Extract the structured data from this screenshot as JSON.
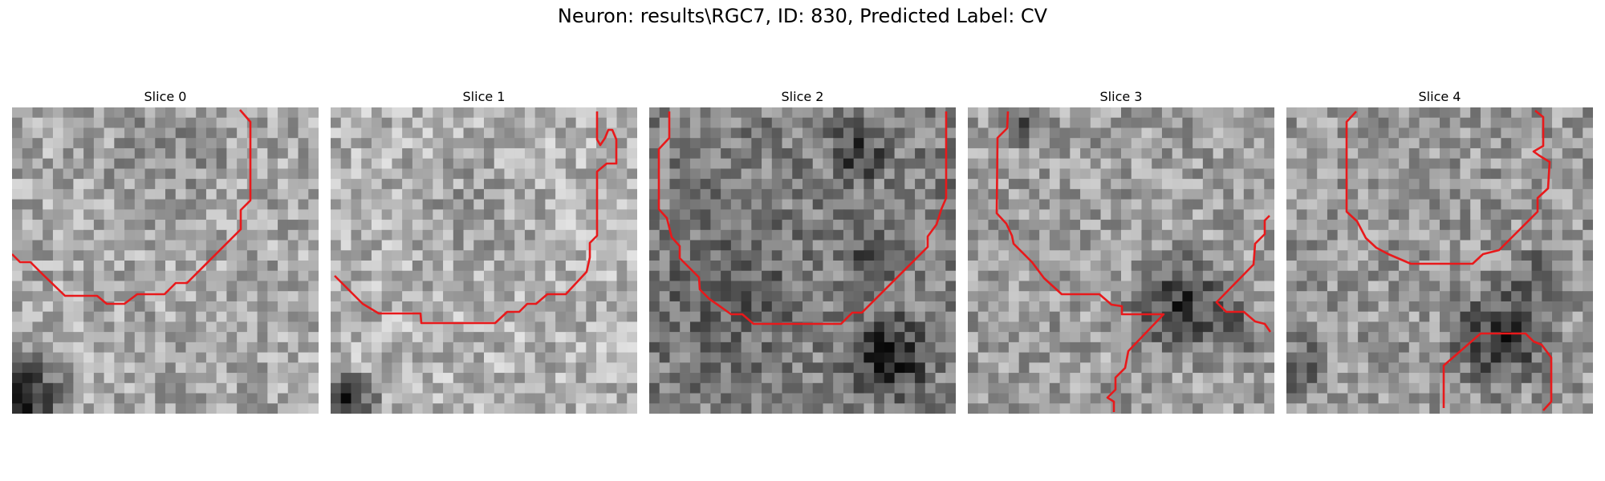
{
  "figure": {
    "title": "Neuron: results\\RGC7, ID: 830, Predicted Label: CV"
  },
  "colors": {
    "contour": "#e8191b"
  },
  "panels": [
    {
      "title": "Slice 0"
    },
    {
      "title": "Slice 1"
    },
    {
      "title": "Slice 2"
    },
    {
      "title": "Slice 3"
    },
    {
      "title": "Slice 4"
    }
  ]
}
